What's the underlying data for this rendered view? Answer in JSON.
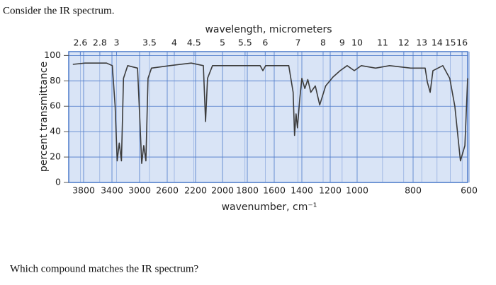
{
  "intro": "Consider the IR spectrum.",
  "question": "Which compound matches the IR spectrum?",
  "chart_data": {
    "type": "line",
    "x2_label": "wavelength, micrometers",
    "x_label": "wavenumber, cm⁻¹",
    "y_label": "percent transmittance",
    "xlim": [
      4000,
      600
    ],
    "xticks": [
      3800,
      3400,
      3000,
      2600,
      2200,
      2000,
      1800,
      1600,
      1400,
      1200,
      1000,
      800,
      600
    ],
    "x2ticks": [
      2.6,
      2.8,
      3,
      3.5,
      4,
      4.5,
      5,
      5.5,
      6,
      7,
      8,
      9,
      10,
      11,
      12,
      13,
      14,
      15,
      16
    ],
    "ylim": [
      0,
      103
    ],
    "yticks": [
      0,
      20,
      40,
      60,
      80,
      100
    ],
    "grid": true,
    "color": "#3c3c3c",
    "x": [
      3952,
      3780,
      3476,
      3395,
      3354,
      3324,
      3294,
      3263,
      3233,
      3172,
      3030,
      3000,
      2969,
      2939,
      2909,
      2878,
      2828,
      2564,
      2261,
      2142,
      2126,
      2111,
      2074,
      1863,
      1705,
      1684,
      1663,
      1495,
      1463,
      1453,
      1442,
      1432,
      1416,
      1400,
      1379,
      1358,
      1337,
      1305,
      1274,
      1232,
      1179,
      1126,
      1074,
      1021,
      985,
      934,
      884,
      808,
      757,
      749,
      739,
      729,
      694,
      669,
      651,
      631,
      615,
      605
    ],
    "values": [
      93,
      94,
      94,
      92,
      60,
      17,
      31,
      17,
      82,
      92,
      90,
      54,
      15,
      29,
      17,
      82,
      90,
      92,
      94,
      92,
      48,
      82,
      92,
      92,
      92,
      88,
      92,
      92,
      71,
      37,
      54,
      43,
      65,
      82,
      74,
      81,
      71,
      76,
      61,
      76,
      83,
      88,
      92,
      88,
      92,
      90,
      92,
      90,
      90,
      79,
      71,
      88,
      92,
      82,
      60,
      17,
      29,
      82
    ]
  }
}
